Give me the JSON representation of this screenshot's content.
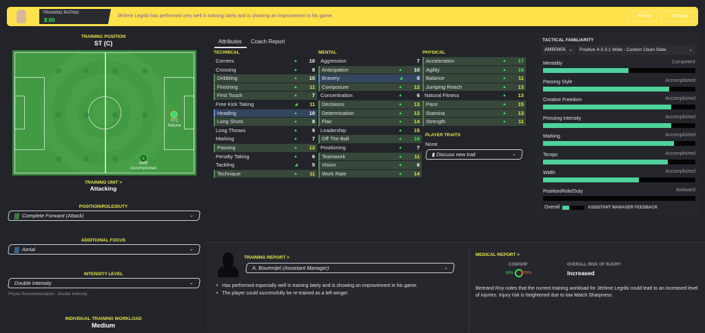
{
  "header": {
    "rating_label": "TRAINING RATING",
    "rating_value": "8.00",
    "message": "Jérôme Legribi has performed very well in training lately and is showing an improvement in his game.",
    "praise": "Praise",
    "criticise": "Criticise"
  },
  "left": {
    "training_position_label": "TRAINING POSITION",
    "training_position": "ST (C)",
    "pitch_positions": [
      {
        "code": "STC",
        "level": "Natural"
      },
      {
        "code": "AMR",
        "level": "Accomplished"
      }
    ],
    "training_unit_label": "TRAINING UNIT >",
    "training_unit": "Attacking",
    "role_label": "POSITION/ROLE/DUTY",
    "role": "Complete Forward (Attack)",
    "focus_label": "ADDITIONAL FOCUS",
    "focus": "Aerial",
    "intensity_label": "INTENSITY LEVEL",
    "intensity": "Double Intensity",
    "physio_label": "Physio Recommendation:",
    "physio_value": "Double Intensity",
    "workload_label": "INDIVIDUAL TRAINING WORKLOAD",
    "workload": "Medium"
  },
  "tabs": [
    "Attributes",
    "Coach Report"
  ],
  "attributes": [
    {
      "title": "TECHNICAL",
      "items": [
        [
          "Corners",
          10,
          "up",
          ""
        ],
        [
          "Crossing",
          8,
          "up",
          ""
        ],
        [
          "Dribbling",
          10,
          "up",
          "g"
        ],
        [
          "Finishing",
          11,
          "up",
          "g"
        ],
        [
          "First Touch",
          7,
          "up",
          "g"
        ],
        [
          "Free Kick Taking",
          11,
          "side",
          ""
        ],
        [
          "Heading",
          10,
          "up",
          "b"
        ],
        [
          "Long Shots",
          8,
          "up",
          "g"
        ],
        [
          "Long Throws",
          9,
          "up",
          ""
        ],
        [
          "Marking",
          7,
          "up",
          ""
        ],
        [
          "Passing",
          12,
          "up",
          "g"
        ],
        [
          "Penalty Taking",
          6,
          "up",
          ""
        ],
        [
          "Tackling",
          5,
          "side",
          ""
        ],
        [
          "Technique",
          11,
          "up",
          "g"
        ]
      ]
    },
    {
      "title": "MENTAL",
      "items": [
        [
          "Aggression",
          7,
          "",
          ""
        ],
        [
          "Anticipation",
          10,
          "up",
          "g"
        ],
        [
          "Bravery",
          8,
          "side",
          "b"
        ],
        [
          "Composure",
          12,
          "up",
          "g"
        ],
        [
          "Concentration",
          6,
          "up",
          ""
        ],
        [
          "Decisions",
          13,
          "up",
          "g"
        ],
        [
          "Determination",
          13,
          "up",
          "g"
        ],
        [
          "Flair",
          14,
          "up",
          "g"
        ],
        [
          "Leadership",
          15,
          "up",
          ""
        ],
        [
          "Off The Ball",
          16,
          "up",
          "g"
        ],
        [
          "Positioning",
          7,
          "up",
          ""
        ],
        [
          "Teamwork",
          11,
          "up",
          "g"
        ],
        [
          "Vision",
          6,
          "up",
          "g"
        ],
        [
          "Work Rate",
          14,
          "up",
          "g"
        ]
      ]
    },
    {
      "title": "PHYSICAL",
      "items": [
        [
          "Acceleration",
          17,
          "up",
          "g"
        ],
        [
          "Agility",
          16,
          "up",
          "g"
        ],
        [
          "Balance",
          11,
          "up",
          "g"
        ],
        [
          "Jumping Reach",
          13,
          "up",
          "g"
        ],
        [
          "Natural Fitness",
          13,
          "up",
          ""
        ],
        [
          "Pace",
          15,
          "up",
          "g"
        ],
        [
          "Stamina",
          13,
          "up",
          "g"
        ],
        [
          "Strength",
          11,
          "up",
          "g"
        ]
      ]
    }
  ],
  "traits": {
    "label": "PLAYER TRAITS",
    "value": "None",
    "button": "Discuss new trait"
  },
  "tactical": {
    "label": "TACTICAL FAMILIARITY",
    "position": "AMR/W/A",
    "tactic": "Positive 4-2-3-1 Wide - Custom Clean Slate",
    "items": [
      {
        "name": "Mentality",
        "level": "Competent",
        "pct": 56
      },
      {
        "name": "Passing Style",
        "level": "Accomplished",
        "pct": 83
      },
      {
        "name": "Creative Freedom",
        "level": "Accomplished",
        "pct": 84
      },
      {
        "name": "Pressing Intensity",
        "level": "Accomplished",
        "pct": 84
      },
      {
        "name": "Marking",
        "level": "Accomplished",
        "pct": 86
      },
      {
        "name": "Tempo",
        "level": "Accomplished",
        "pct": 82
      },
      {
        "name": "Width",
        "level": "Accomplished",
        "pct": 63
      },
      {
        "name": "Position/Role/Duty",
        "level": "Awkward",
        "pct": 0
      }
    ],
    "overall_label": "Overall",
    "feedback": "ASSISTANT MANAGER FEEDBACK"
  },
  "training_report": {
    "label": "TRAINING REPORT >",
    "coach": "A. Boumnijel (Assistant Manager)",
    "bullets": [
      "Has performed especially well in training lately and is showing an improvement in his game.",
      "The player could successfully be re-trained as a left winger."
    ]
  },
  "medical": {
    "label": "MEDICAL REPORT >",
    "con_label": "CON/SHP",
    "condition": "96%",
    "sharpness": "59%",
    "risk_label": "OVERALL RISK OF INJURY",
    "risk": "Increased",
    "note": "Bertrand Roy notes that the current training workload for Jérôme Legribi could lead to an increased level of injuries. Injury risk is heightened due to low Match Sharpness."
  },
  "colors": {
    "accent": "#fde24c",
    "bar": "#4fd39c",
    "yellow_value": "#e6e84a",
    "green_value": "#3fe35a"
  }
}
